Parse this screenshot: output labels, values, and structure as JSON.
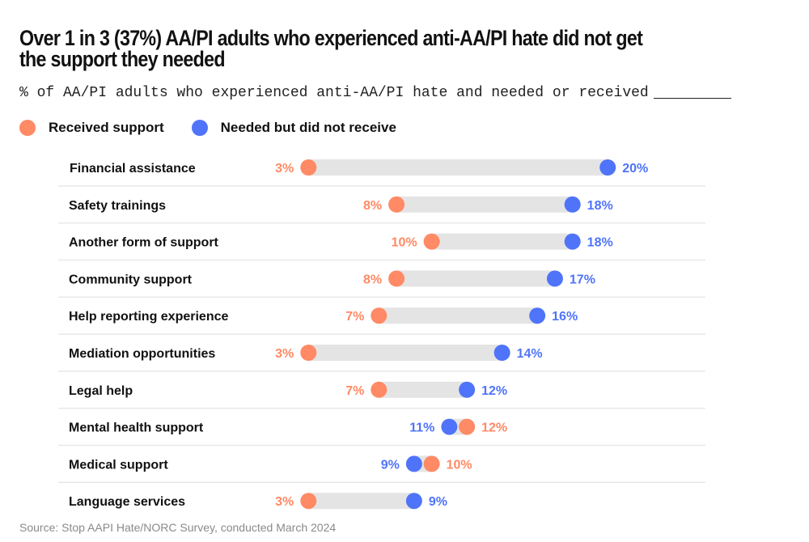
{
  "title": "Over 1 in 3 (37%) AA/PI adults who experienced anti-AA/PI hate did not get the support they needed",
  "subtitle": "% of AA/PI adults who experienced anti-AA/PI hate and needed or received",
  "source": "Source: Stop AAPI Hate/NORC Survey, conducted March 2024",
  "colors": {
    "received": "#ff8a65",
    "needed": "#4f74f9",
    "track": "#e4e4e4",
    "divider": "#e8e8e8"
  },
  "chart_data": {
    "type": "dumbbell",
    "title": "Over 1 in 3 (37%) AA/PI adults who experienced anti-AA/PI hate did not get the support they needed",
    "subtitle": "% of AA/PI adults who experienced anti-AA/PI hate and needed or received",
    "unit": "%",
    "legend": [
      {
        "key": "received",
        "label": "Received support"
      },
      {
        "key": "needed",
        "label": "Needed but did not receive"
      }
    ],
    "legend_position": "top-left",
    "categories": [
      "Financial assistance",
      "Safety trainings",
      "Another form of support",
      "Community support",
      "Help reporting experience",
      "Mediation opportunities",
      "Legal help",
      "Mental health support",
      "Medical support",
      "Language services"
    ],
    "series": [
      {
        "name": "Received support",
        "key": "received",
        "values": [
          3,
          8,
          10,
          8,
          7,
          3,
          7,
          12,
          10,
          3
        ]
      },
      {
        "name": "Needed but did not receive",
        "key": "needed",
        "values": [
          20,
          18,
          18,
          17,
          16,
          14,
          12,
          11,
          9,
          9
        ]
      }
    ]
  }
}
